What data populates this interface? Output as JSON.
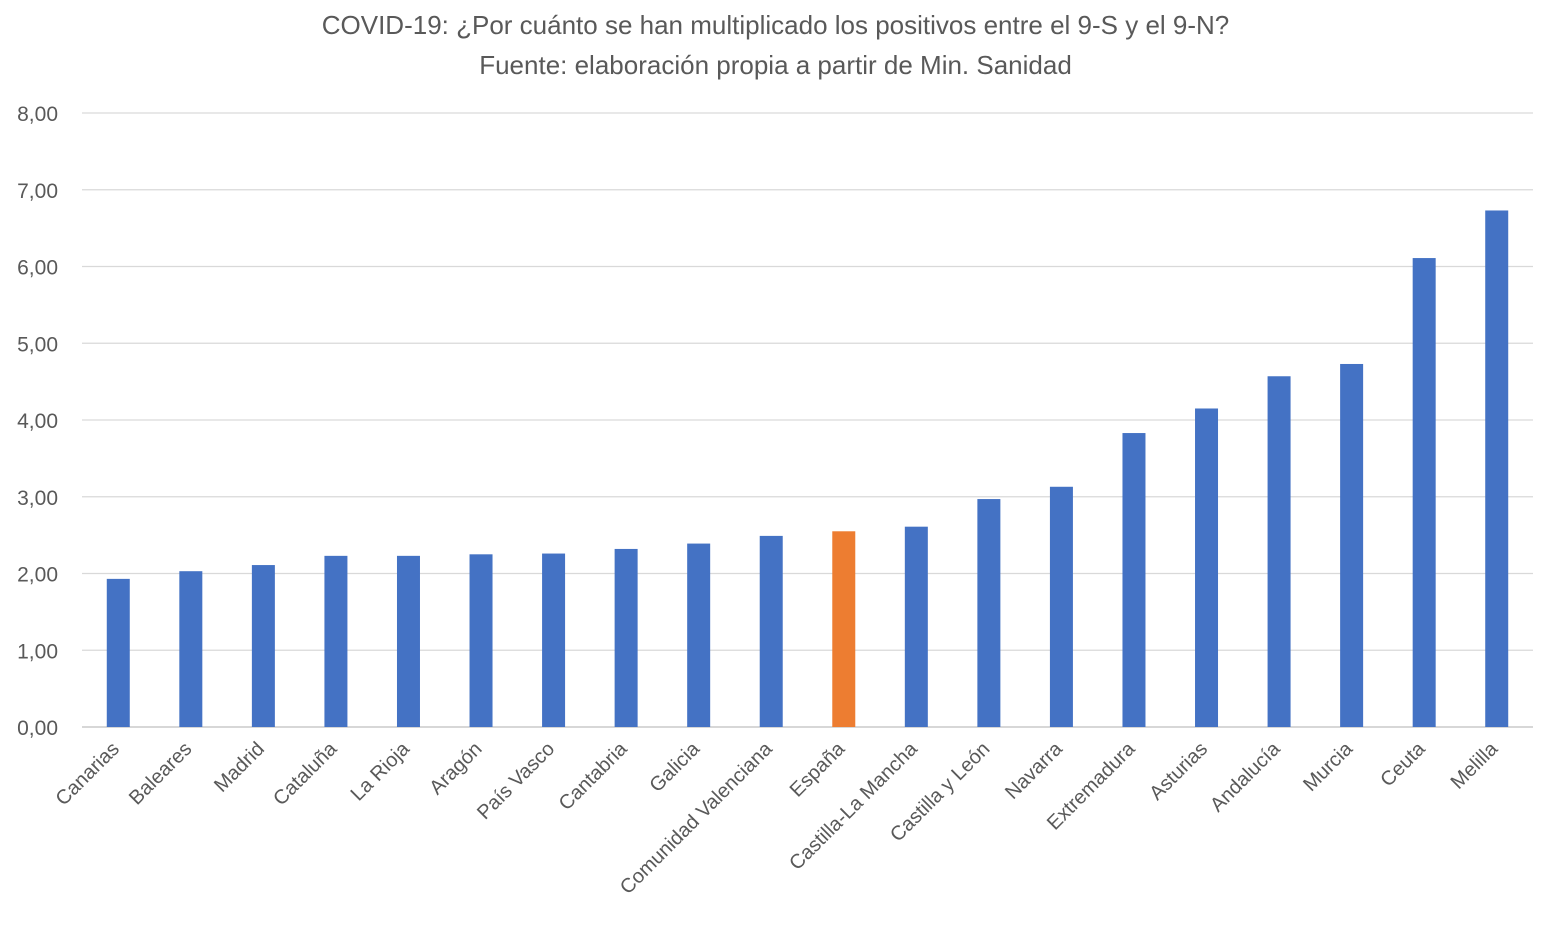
{
  "chart_data": {
    "type": "bar",
    "title": "COVID-19: ¿Por cuánto se han multiplicado los positivos entre el 9-S y el 9-N?",
    "subtitle": "Fuente: elaboración propia a partir de Min. Sanidad",
    "xlabel": "",
    "ylabel": "",
    "ylim": [
      0,
      8
    ],
    "yticks": [
      "0,00",
      "1,00",
      "2,00",
      "3,00",
      "4,00",
      "5,00",
      "6,00",
      "7,00",
      "8,00"
    ],
    "grid": true,
    "categories": [
      "Canarias",
      "Baleares",
      "Madrid",
      "Cataluña",
      "La Rioja",
      "Aragón",
      "País Vasco",
      "Cantabria",
      "Galicia",
      "Comunidad Valenciana",
      "España",
      "Castilla-La Mancha",
      "Castilla y León",
      "Navarra",
      "Extremadura",
      "Asturias",
      "Andalucía",
      "Murcia",
      "Ceuta",
      "Melilla"
    ],
    "values": [
      1.93,
      2.03,
      2.11,
      2.23,
      2.23,
      2.25,
      2.26,
      2.32,
      2.39,
      2.49,
      2.55,
      2.61,
      2.97,
      3.13,
      3.83,
      4.15,
      4.57,
      4.73,
      6.11,
      6.73
    ],
    "highlight": "España",
    "colors": {
      "bar": "#4472C4",
      "highlight": "#ED7D31",
      "grid": "#D9D9D9",
      "text": "#595959"
    }
  }
}
